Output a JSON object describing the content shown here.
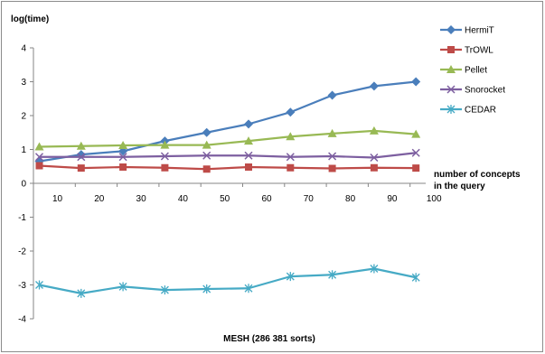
{
  "chart_data": {
    "type": "line",
    "title": "",
    "ylabel": "log(time)",
    "xlabel": "number of  concepts\nin  the query",
    "caption": "MESH (286 381 sorts)",
    "x": [
      "10",
      "20",
      "30",
      "40",
      "50",
      "60",
      "70",
      "80",
      "90",
      "100"
    ],
    "ylim": [
      -4,
      4
    ],
    "yticks": [
      "4",
      "3",
      "2",
      "1",
      "0",
      "-1",
      "-2",
      "-3",
      "-4"
    ],
    "grid": false,
    "legend": "right",
    "series": [
      {
        "name": "HermiT",
        "color": "#4a7ebb",
        "marker": "diamond",
        "values": [
          0.65,
          0.85,
          0.95,
          1.25,
          1.5,
          1.75,
          2.1,
          2.6,
          2.87,
          3.0
        ]
      },
      {
        "name": "TrOWL",
        "color": "#be4b48",
        "marker": "square",
        "values": [
          0.52,
          0.45,
          0.48,
          0.46,
          0.42,
          0.48,
          0.46,
          0.44,
          0.46,
          0.45
        ]
      },
      {
        "name": "Pellet",
        "color": "#98b954",
        "marker": "triangle",
        "values": [
          1.08,
          1.1,
          1.12,
          1.13,
          1.13,
          1.25,
          1.38,
          1.47,
          1.55,
          1.45
        ]
      },
      {
        "name": "Snorocket",
        "color": "#7d5fa0",
        "marker": "x",
        "values": [
          0.78,
          0.78,
          0.78,
          0.8,
          0.82,
          0.82,
          0.78,
          0.8,
          0.76,
          0.9
        ]
      },
      {
        "name": "CEDAR",
        "color": "#46aac5",
        "marker": "star",
        "values": [
          -3.0,
          -3.25,
          -3.05,
          -3.15,
          -3.12,
          -3.1,
          -2.75,
          -2.7,
          -2.52,
          -2.78
        ]
      }
    ]
  }
}
